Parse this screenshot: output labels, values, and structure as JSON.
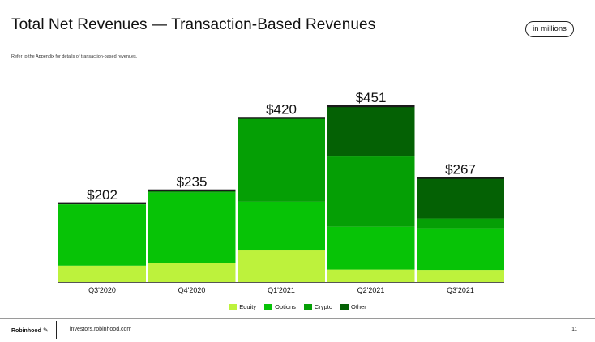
{
  "header": {
    "title": "Total Net Revenues — Transaction-Based Revenues",
    "units_badge": "in millions",
    "note": "Refer to the Appendix for details of transaction-based revenues."
  },
  "chart_data": {
    "type": "bar",
    "stacked": true,
    "categories": [
      "Q3'2020",
      "Q4'2020",
      "Q1'2021",
      "Q2'2021",
      "Q3'2021"
    ],
    "series": [
      {
        "name": "Equity",
        "color": "#bdf23c",
        "values": [
          42,
          49,
          81,
          32,
          31
        ]
      },
      {
        "name": "Options",
        "color": "#07c306",
        "values": [
          157,
          180,
          125,
          110,
          107
        ]
      },
      {
        "name": "Crypto",
        "color": "#059f05",
        "values": [
          3,
          6,
          215,
          180,
          25
        ]
      },
      {
        "name": "Other",
        "color": "#046104",
        "values": [
          0,
          0,
          0,
          129,
          104
        ]
      }
    ],
    "totals": [
      202,
      235,
      420,
      451,
      267
    ],
    "total_labels": [
      "$202",
      "$235",
      "$420",
      "$451",
      "$267"
    ],
    "ylim": [
      0,
      451
    ],
    "grid": false,
    "legend_position": "bottom-center"
  },
  "footer": {
    "brand": "Robinhood",
    "brand_icon": "feather-icon",
    "url": "investors.robinhood.com",
    "page_number": "11"
  }
}
